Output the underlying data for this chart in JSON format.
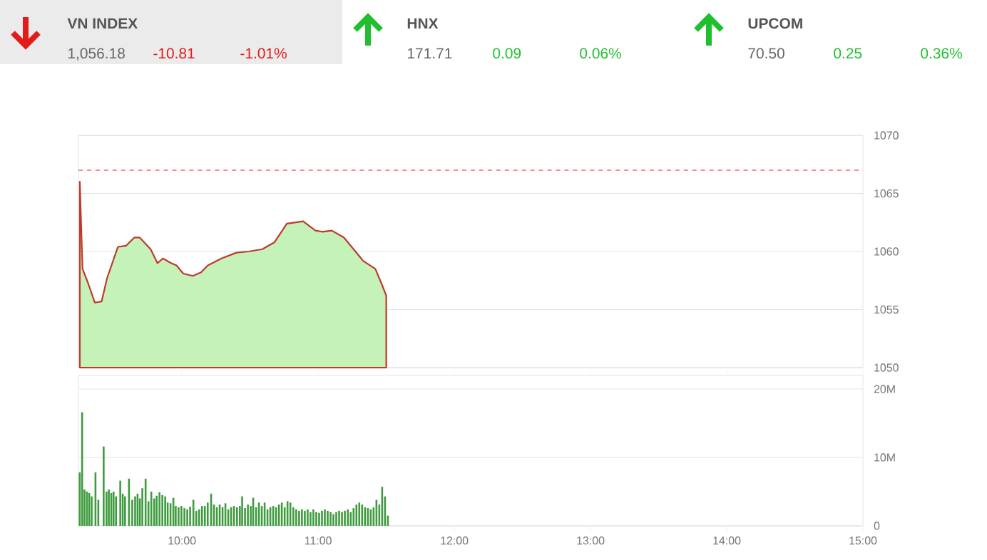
{
  "chart_data": [
    {
      "type": "other",
      "colors": [
        "#e21b1b",
        "#1fbf2e",
        "#1fbf2e"
      ],
      "annotations": [
        "VN INDEX",
        "1,056.18",
        "-10.81",
        "-1.01%",
        "HNX",
        "171.71",
        "0.09",
        "0.06%",
        "UPCOM",
        "70.50",
        "0.25",
        "0.36%"
      ]
    },
    {
      "type": "area",
      "x": [
        9.25,
        9.27,
        9.31,
        9.36,
        9.41,
        9.45,
        9.53,
        9.59,
        9.65,
        9.69,
        9.77,
        9.82,
        9.86,
        9.92,
        9.96,
        10.01,
        10.08,
        10.14,
        10.19,
        10.29,
        10.4,
        10.49,
        10.59,
        10.68,
        10.77,
        10.89,
        10.98,
        11.03,
        11.1,
        11.19,
        11.26,
        11.33,
        11.42,
        11.47,
        11.5
      ],
      "series": [
        {
          "color": "#c0392b",
          "values": [
            1066.0,
            1058.5,
            1057.3,
            1055.6,
            1055.7,
            1057.7,
            1060.4,
            1060.5,
            1061.2,
            1061.2,
            1060.2,
            1059.0,
            1059.4,
            1059.0,
            1058.8,
            1058.1,
            1057.9,
            1058.2,
            1058.8,
            1059.4,
            1059.9,
            1060.0,
            1060.2,
            1060.8,
            1062.4,
            1062.6,
            1061.8,
            1061.7,
            1061.8,
            1061.2,
            1060.2,
            1059.2,
            1058.5,
            1057.1,
            1056.2
          ]
        }
      ],
      "xlim": [
        9.24,
        15
      ],
      "ylim": [
        1050,
        1070
      ],
      "yticks": [
        1050,
        1055,
        1060,
        1065,
        1070
      ],
      "grid": "y",
      "tick_labels": "y",
      "ref_lines": [
        {
          "axis": "y",
          "value": 1067,
          "color": "#e53935",
          "line_style": "dashed"
        }
      ]
    },
    {
      "type": "bar",
      "color": "#3e9b3e",
      "x": [
        9.249,
        9.267,
        9.284,
        9.302,
        9.319,
        9.337,
        9.365,
        9.386,
        9.425,
        9.446,
        9.463,
        9.481,
        9.498,
        9.516,
        9.547,
        9.565,
        9.582,
        9.611,
        9.635,
        9.656,
        9.674,
        9.691,
        9.709,
        9.733,
        9.754,
        9.775,
        9.796,
        9.814,
        9.835,
        9.856,
        9.877,
        9.895,
        9.916,
        9.937,
        9.954,
        9.975,
        9.996,
        10.018,
        10.039,
        10.06,
        10.084,
        10.105,
        10.126,
        10.147,
        10.168,
        10.189,
        10.214,
        10.235,
        10.256,
        10.277,
        10.298,
        10.319,
        10.34,
        10.361,
        10.382,
        10.404,
        10.425,
        10.442,
        10.463,
        10.484,
        10.505,
        10.523,
        10.544,
        10.565,
        10.586,
        10.607,
        10.628,
        10.649,
        10.67,
        10.691,
        10.712,
        10.733,
        10.754,
        10.775,
        10.796,
        10.818,
        10.839,
        10.86,
        10.881,
        10.902,
        10.923,
        10.944,
        10.965,
        10.986,
        11.007,
        11.028,
        11.049,
        11.07,
        11.091,
        11.112,
        11.133,
        11.154,
        11.175,
        11.196,
        11.218,
        11.239,
        11.26,
        11.281,
        11.302,
        11.323,
        11.344,
        11.365,
        11.386,
        11.407,
        11.428,
        11.449,
        11.47,
        11.491,
        11.512
      ],
      "values": [
        7800000,
        16600000,
        5300000,
        5000000,
        4800000,
        4300000,
        7800000,
        3800000,
        11600000,
        5000000,
        5300000,
        4800000,
        5000000,
        4300000,
        6600000,
        4700000,
        4300000,
        6900000,
        3800000,
        4300000,
        4700000,
        4000000,
        5500000,
        6900000,
        3600000,
        5000000,
        4000000,
        4400000,
        4900000,
        4500000,
        4300000,
        3400000,
        3300000,
        4100000,
        2900000,
        2700000,
        2900000,
        2600000,
        2400000,
        2800000,
        3800000,
        2200000,
        2400000,
        2900000,
        2900000,
        3400000,
        4700000,
        3100000,
        2700000,
        3100000,
        2700000,
        3300000,
        2400000,
        2700000,
        2900000,
        2700000,
        2900000,
        4300000,
        2600000,
        3100000,
        2900000,
        4100000,
        2700000,
        3400000,
        2900000,
        3400000,
        2400000,
        2700000,
        2900000,
        2700000,
        3100000,
        3400000,
        2700000,
        3600000,
        3400000,
        2700000,
        2400000,
        2200000,
        2400000,
        2200000,
        2400000,
        2000000,
        2400000,
        2000000,
        1900000,
        2200000,
        2400000,
        2200000,
        2000000,
        1700000,
        2000000,
        2200000,
        2000000,
        2200000,
        2400000,
        2000000,
        2600000,
        3100000,
        3400000,
        3100000,
        2700000,
        2600000,
        2400000,
        2700000,
        3800000,
        3100000,
        5700000,
        4300000,
        1500000
      ],
      "xlim": [
        9.24,
        15
      ],
      "xticks": [
        {
          "value": 10,
          "label": "10:00"
        },
        {
          "value": 11,
          "label": "11:00"
        },
        {
          "value": 12,
          "label": "12:00"
        },
        {
          "value": 13,
          "label": "13:00"
        },
        {
          "value": 14,
          "label": "14:00"
        },
        {
          "value": 15,
          "label": "15:00"
        }
      ],
      "ylim": [
        0,
        22000000
      ],
      "yticks": [
        {
          "value": 0,
          "label": "0"
        },
        {
          "value": 10000000,
          "label": "10M"
        },
        {
          "value": 20000000,
          "label": "20M"
        }
      ],
      "grid": "y"
    }
  ]
}
